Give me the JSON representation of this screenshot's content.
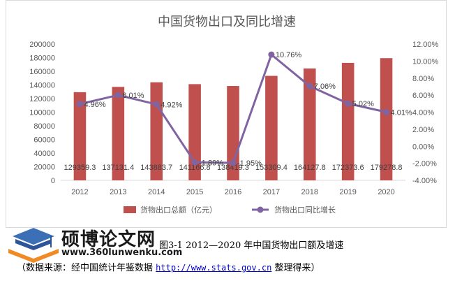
{
  "chart_data": {
    "type": "bar",
    "title": "中国货物出口及同比增速",
    "categories": [
      "2012",
      "2013",
      "2014",
      "2015",
      "2016",
      "2017",
      "2018",
      "2019",
      "2020"
    ],
    "series": [
      {
        "name": "货物出口总额（亿元）",
        "type": "bar",
        "axis": "left",
        "values": [
          129359.3,
          137131.4,
          143883.7,
          141166.8,
          138419.3,
          153309.4,
          164127.8,
          172373.6,
          179278.8
        ],
        "data_labels": [
          "129359.3",
          "137131.4",
          "143883.7",
          "141166.8",
          "138419.3",
          "153309.4",
          "164127.8",
          "172373.6",
          "179278.8"
        ],
        "color": "#c0504d"
      },
      {
        "name": "货物出口同比增长",
        "type": "line",
        "axis": "right",
        "values": [
          4.96,
          6.01,
          4.92,
          -1.89,
          -1.95,
          10.76,
          7.06,
          5.02,
          4.01
        ],
        "data_labels": [
          "4.96%",
          "6.01%",
          "4.92%",
          "-1.89%",
          "-1.95%",
          "10.76%",
          "7.06%",
          "5.02%",
          "4.01%"
        ],
        "color": "#8064a2"
      }
    ],
    "y_left": {
      "lim": [
        0,
        200000
      ],
      "ticks": [
        "0",
        "20000",
        "40000",
        "60000",
        "80000",
        "100000",
        "120000",
        "140000",
        "160000",
        "180000",
        "200000"
      ]
    },
    "y_right": {
      "lim": [
        -4,
        12
      ],
      "ticks": [
        "-4.00%",
        "-2.00%",
        "0.00%",
        "2.00%",
        "4.00%",
        "6.00%",
        "8.00%",
        "10.00%",
        "12.00%"
      ]
    },
    "grid": false,
    "legend": "bottom"
  },
  "watermark": {
    "brand": "硕博论文网",
    "url": "www.360lunwenku.com"
  },
  "caption": {
    "figure_text": "图3-1 2012—2020 年中国货物出口额及增速",
    "source_prefix": "（数据来源：经中国统计年鉴数据 ",
    "source_link": "http://www.stats.gov.cn",
    "source_suffix": " 整理得来）"
  }
}
